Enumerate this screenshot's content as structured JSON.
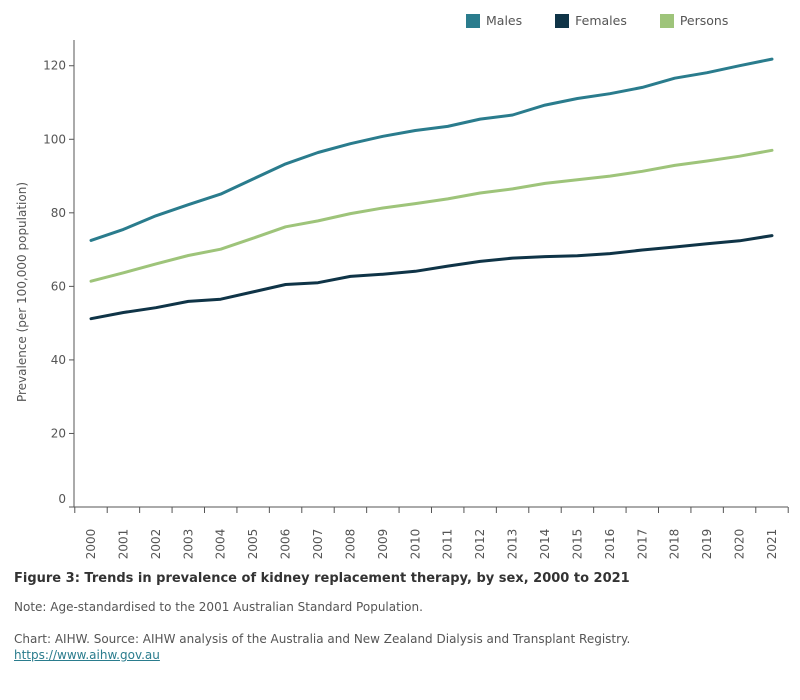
{
  "chart_data": {
    "type": "line",
    "title": "",
    "xlabel": "",
    "ylabel": "Prevalence (per 100,000 population)",
    "ylim": [
      0,
      127
    ],
    "yticks": [
      0,
      20,
      40,
      60,
      80,
      100,
      120
    ],
    "grid": false,
    "legend_position": "top-right",
    "categories": [
      "2000",
      "2001",
      "2002",
      "2003",
      "2004",
      "2005",
      "2006",
      "2007",
      "2008",
      "2009",
      "2010",
      "2011",
      "2012",
      "2013",
      "2014",
      "2015",
      "2016",
      "2017",
      "2018",
      "2019",
      "2020",
      "2021"
    ],
    "series": [
      {
        "name": "Males",
        "color": "#2a7c8d",
        "values": [
          72.5,
          75.5,
          79.2,
          82.2,
          85.1,
          89.2,
          93.3,
          96.4,
          98.8,
          100.8,
          102.4,
          103.5,
          105.5,
          106.6,
          109.3,
          111.1,
          112.4,
          114.1,
          116.6,
          118.1,
          120.0,
          121.8
        ]
      },
      {
        "name": "Females",
        "color": "#0f3447",
        "values": [
          51.2,
          52.9,
          54.2,
          55.9,
          56.5,
          58.5,
          60.5,
          61.0,
          62.7,
          63.3,
          64.1,
          65.5,
          66.8,
          67.7,
          68.1,
          68.3,
          68.9,
          69.9,
          70.7,
          71.6,
          72.4,
          73.8
        ]
      },
      {
        "name": "Persons",
        "color": "#9ec47a",
        "values": [
          61.4,
          63.7,
          66.1,
          68.4,
          70.1,
          73.1,
          76.2,
          77.8,
          79.8,
          81.3,
          82.5,
          83.8,
          85.4,
          86.5,
          88.0,
          89.0,
          90.0,
          91.3,
          92.9,
          94.1,
          95.4,
          97.0
        ]
      }
    ]
  },
  "caption": {
    "title": "Figure 3: Trends in prevalence of kidney replacement therapy, by sex, 2000 to 2021",
    "note": "Note: Age-standardised to the 2001 Australian Standard Population.",
    "source": "Chart: AIHW. Source: AIHW analysis of the Australia and New Zealand Dialysis and Transplant Registry.",
    "link": "https://www.aihw.gov.au"
  }
}
